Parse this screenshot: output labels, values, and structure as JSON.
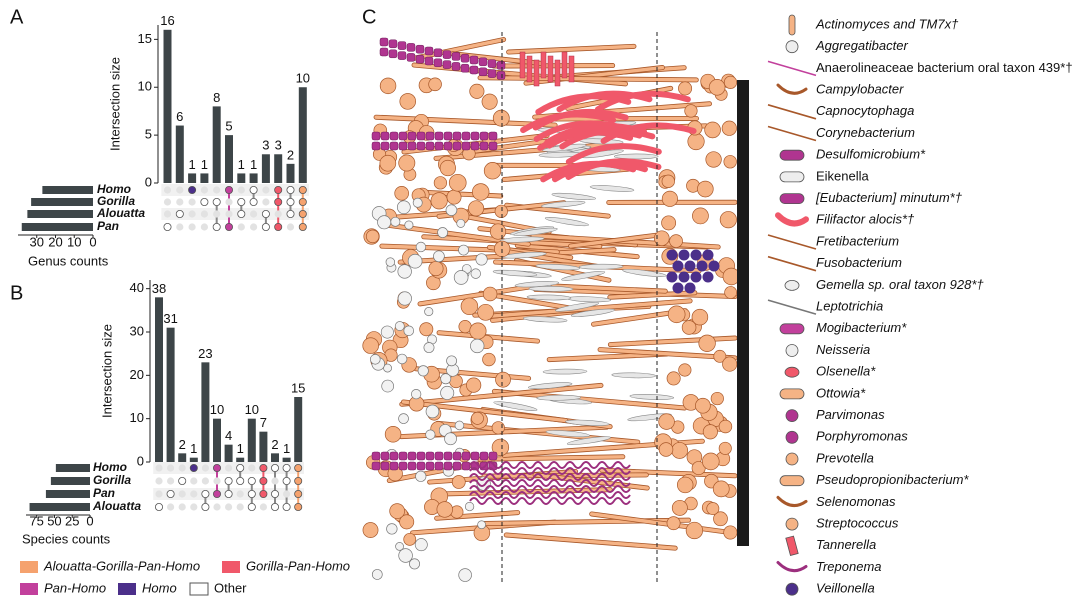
{
  "chart_data": [
    {
      "type": "upset",
      "panel": "A",
      "ylabel": "Intersection size",
      "values": [
        16,
        6,
        1,
        1,
        8,
        5,
        1,
        1,
        3,
        3,
        2,
        10
      ],
      "intersections": [
        [
          3
        ],
        [
          2
        ],
        [
          0
        ],
        [
          1
        ],
        [
          1,
          3
        ],
        [
          0,
          3
        ],
        [
          1,
          2
        ],
        [
          0,
          1
        ],
        [
          2,
          3
        ],
        [
          0,
          1,
          3
        ],
        [
          0,
          1,
          2
        ],
        [
          0,
          1,
          2,
          3
        ]
      ],
      "colors": [
        "#ffffff",
        "#ffffff",
        "#4b2f8a",
        "#ffffff",
        "#ffffff",
        "#c2409c",
        "#ffffff",
        "#ffffff",
        "#ffffff",
        "#f0586a",
        "#ffffff",
        "#f5a26e"
      ],
      "bar_color": "#3d4548",
      "ylim": [
        0,
        16.5
      ],
      "yticks": [
        0,
        5,
        10,
        15
      ],
      "sets": [
        "Homo",
        "Gorilla",
        "Alouatta",
        "Pan"
      ],
      "set_sizes": [
        27,
        33,
        35,
        38
      ],
      "set_xlabel": "Genus counts",
      "set_xlim": [
        0,
        40
      ],
      "set_xticks": [
        30,
        20,
        10,
        0
      ]
    },
    {
      "type": "upset",
      "panel": "B",
      "ylabel": "Intersection size",
      "values": [
        38,
        31,
        2,
        1,
        23,
        10,
        4,
        1,
        10,
        7,
        2,
        1,
        15
      ],
      "intersections": [
        [
          3
        ],
        [
          2
        ],
        [
          1
        ],
        [
          0
        ],
        [
          2,
          3
        ],
        [
          0,
          2
        ],
        [
          1,
          2
        ],
        [
          0,
          1
        ],
        [
          1,
          2,
          3
        ],
        [
          0,
          1,
          2
        ],
        [
          0,
          2,
          3
        ],
        [
          0,
          1,
          3
        ],
        [
          0,
          1,
          2,
          3
        ]
      ],
      "colors": [
        "#ffffff",
        "#ffffff",
        "#ffffff",
        "#4b2f8a",
        "#ffffff",
        "#c2409c",
        "#ffffff",
        "#ffffff",
        "#ffffff",
        "#f0586a",
        "#ffffff",
        "#ffffff",
        "#f5a26e"
      ],
      "bar_color": "#3d4548",
      "ylim": [
        0,
        42
      ],
      "yticks": [
        0,
        10,
        20,
        30,
        40
      ],
      "sets": [
        "Homo",
        "Gorilla",
        "Pan",
        "Alouatta"
      ],
      "set_sizes": [
        48,
        55,
        62,
        85
      ],
      "set_xlabel": "Species counts",
      "set_xlim": [
        0,
        90
      ],
      "set_xticks": [
        75,
        50,
        25,
        0
      ]
    }
  ],
  "legend": [
    {
      "label": "Alouatta-Gorilla-Pan-Homo",
      "color": "#f5a26e"
    },
    {
      "label": "Gorilla-Pan-Homo",
      "color": "#f0586a"
    },
    {
      "label": "Pan-Homo",
      "color": "#c2409c"
    },
    {
      "label": "Homo",
      "color": "#4b2f8a"
    },
    {
      "label": "Other",
      "color": "#ffffff"
    }
  ],
  "diagram": {
    "panel": "C",
    "legend": [
      {
        "label": "Actinomyces and TM7x†",
        "color": "#f5b385",
        "shape": "rod"
      },
      {
        "label": "Aggregatibacter",
        "color": "#eeeeee",
        "shape": "circle"
      },
      {
        "label": "Anaerolineaceae bacterium oral taxon 439*†",
        "color": "#c2409c",
        "shape": "line"
      },
      {
        "label": "Campylobacter",
        "color": "#f5b385",
        "shape": "curve"
      },
      {
        "label": "Capnocytophaga",
        "color": "#f5b385",
        "shape": "line"
      },
      {
        "label": "Corynebacterium",
        "color": "#f5b385",
        "shape": "line"
      },
      {
        "label": "Desulfomicrobium*",
        "color": "#b03590",
        "shape": "capsule"
      },
      {
        "label": "Eikenella",
        "color": "#eeeeee",
        "shape": "capsule"
      },
      {
        "label": "[Eubacterium] minutum*†",
        "color": "#b03590",
        "shape": "capsule"
      },
      {
        "label": "Filifactor alocis*†",
        "color": "#f0586a",
        "shape": "curve"
      },
      {
        "label": "Fretibacterium",
        "color": "#f5b385",
        "shape": "line"
      },
      {
        "label": "Fusobacterium",
        "color": "#f5b385",
        "shape": "line"
      },
      {
        "label": "Gemella sp. oral taxon 928*†",
        "color": "#eeeeee",
        "shape": "ellipse"
      },
      {
        "label": "Leptotrichia",
        "color": "#eeeeee",
        "shape": "line"
      },
      {
        "label": "Mogibacterium*",
        "color": "#c2409c",
        "shape": "capsule"
      },
      {
        "label": "Neisseria",
        "color": "#eeeeee",
        "shape": "circle"
      },
      {
        "label": "Olsenella*",
        "color": "#f0586a",
        "shape": "ellipse"
      },
      {
        "label": "Ottowia*",
        "color": "#f5b385",
        "shape": "capsule"
      },
      {
        "label": "Parvimonas",
        "color": "#b03590",
        "shape": "circle"
      },
      {
        "label": "Porphyromonas",
        "color": "#b03590",
        "shape": "circle"
      },
      {
        "label": "Prevotella",
        "color": "#f5b385",
        "shape": "circle"
      },
      {
        "label": "Pseudopropionibacterium*",
        "color": "#f5b385",
        "shape": "capsule"
      },
      {
        "label": "Selenomonas",
        "color": "#f5b385",
        "shape": "curve"
      },
      {
        "label": "Streptococcus",
        "color": "#f5b385",
        "shape": "circle"
      },
      {
        "label": "Tannerella",
        "color": "#f0586a",
        "shape": "rect"
      },
      {
        "label": "Treponema",
        "color": "#9c2f7e",
        "shape": "curve"
      },
      {
        "label": "Veillonella",
        "color": "#4b2f8a",
        "shape": "circle"
      }
    ]
  }
}
